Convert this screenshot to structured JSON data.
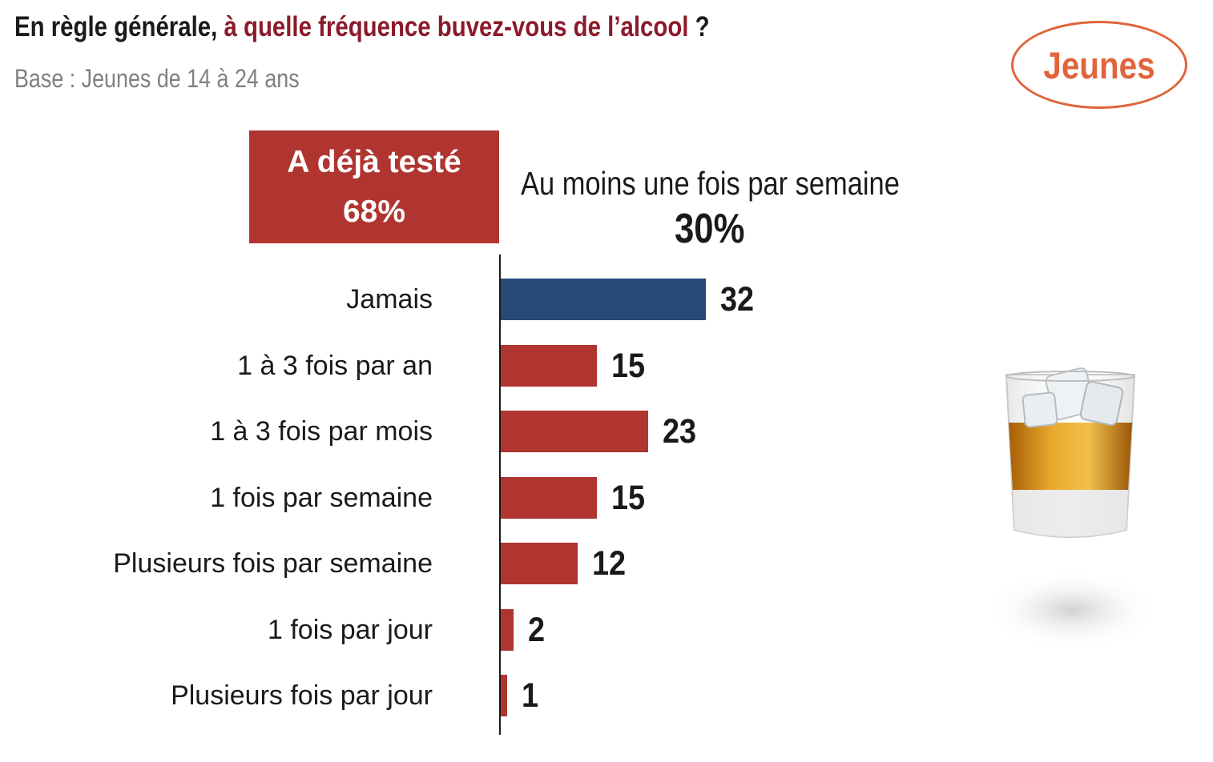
{
  "header": {
    "title_part1": "En règle générale,",
    "title_highlight": "à quelle fréquence buvez-vous de l’alcool",
    "title_part2": "?",
    "subtitle": "Base : Jeunes de 14 à 24 ans",
    "badge": "Jeunes"
  },
  "summary": {
    "tested_label": "A déjà testé",
    "tested_value": "68%",
    "weekly_label": "Au moins une fois par semaine",
    "weekly_value": "30%"
  },
  "colors": {
    "title_highlight": "#8b1a2b",
    "bar_jamais": "#264a78",
    "bar_default": "#b03530",
    "badge": "#e0643c"
  },
  "chart_data": {
    "type": "bar",
    "orientation": "horizontal",
    "title": "En règle générale, à quelle fréquence buvez-vous de l’alcool ?",
    "subtitle": "Base : Jeunes de 14 à 24 ans",
    "categories": [
      "Jamais",
      "1 à 3 fois par an",
      "1 à 3 fois par mois",
      "1 fois par semaine",
      "Plusieurs fois par semaine",
      "1 fois par jour",
      "Plusieurs fois par jour"
    ],
    "values": [
      32,
      15,
      23,
      15,
      12,
      2,
      1
    ],
    "value_labels": [
      "32",
      "15",
      "23",
      "15",
      "12",
      "2",
      "1"
    ],
    "xlim": [
      0,
      100
    ],
    "grid": false,
    "legend": "none"
  }
}
